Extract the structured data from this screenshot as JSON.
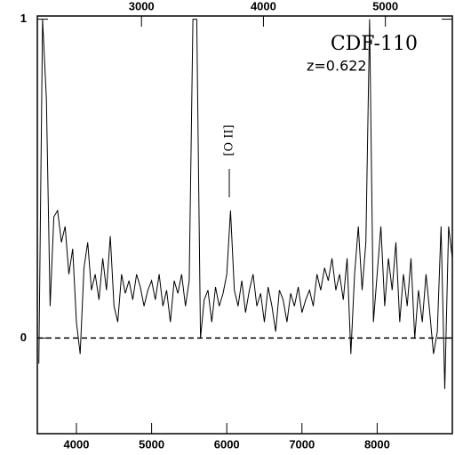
{
  "chart_data": {
    "type": "line",
    "annotations": [
      "CDF-110",
      "z=0.622",
      "[O II]"
    ],
    "color": "#000000",
    "x": [
      3500,
      3550,
      3600,
      3650,
      3700,
      3750,
      3800,
      3850,
      3900,
      3950,
      4000,
      4050,
      4100,
      4150,
      4200,
      4250,
      4300,
      4350,
      4400,
      4450,
      4500,
      4550,
      4600,
      4650,
      4700,
      4750,
      4800,
      4850,
      4900,
      4950,
      5000,
      5050,
      5100,
      5150,
      5200,
      5250,
      5300,
      5350,
      5400,
      5450,
      5500,
      5550,
      5600,
      5650,
      5700,
      5750,
      5800,
      5850,
      5900,
      5950,
      6000,
      6050,
      6100,
      6150,
      6200,
      6250,
      6300,
      6350,
      6400,
      6450,
      6500,
      6550,
      6600,
      6650,
      6700,
      6750,
      6800,
      6850,
      6900,
      6950,
      7000,
      7050,
      7100,
      7150,
      7200,
      7250,
      7300,
      7350,
      7400,
      7450,
      7500,
      7550,
      7600,
      7650,
      7700,
      7750,
      7800,
      7850,
      7900,
      7950,
      8000,
      8050,
      8100,
      8150,
      8200,
      8250,
      8300,
      8350,
      8400,
      8450,
      8500,
      8550,
      8600,
      8650,
      8700,
      8750,
      8800,
      8850,
      8900,
      8950,
      9000
    ],
    "values": [
      -0.08,
      1.0,
      0.75,
      0.1,
      0.38,
      0.4,
      0.3,
      0.35,
      0.2,
      0.28,
      0.05,
      -0.05,
      0.22,
      0.3,
      0.15,
      0.2,
      0.12,
      0.25,
      0.15,
      0.32,
      0.1,
      0.05,
      0.2,
      0.14,
      0.18,
      0.12,
      0.2,
      0.16,
      0.1,
      0.15,
      0.18,
      0.12,
      0.2,
      0.1,
      0.15,
      0.05,
      0.18,
      0.14,
      0.2,
      0.1,
      0.18,
      1.0,
      1.0,
      0.0,
      0.12,
      0.15,
      0.05,
      0.16,
      0.1,
      0.14,
      0.2,
      0.4,
      0.15,
      0.1,
      0.18,
      0.08,
      0.15,
      0.2,
      0.1,
      0.14,
      0.05,
      0.16,
      0.1,
      0.02,
      0.15,
      0.12,
      0.05,
      0.14,
      0.1,
      0.16,
      0.08,
      0.12,
      0.15,
      0.1,
      0.2,
      0.15,
      0.22,
      0.18,
      0.25,
      0.15,
      0.2,
      0.12,
      0.25,
      -0.05,
      0.2,
      0.35,
      0.15,
      0.3,
      1.0,
      0.05,
      0.2,
      0.35,
      0.1,
      0.25,
      0.15,
      0.3,
      0.05,
      0.2,
      0.1,
      0.25,
      0.0,
      0.15,
      0.05,
      0.2,
      0.08,
      -0.05,
      0.02,
      0.35,
      -0.16,
      0.35,
      0.25
    ],
    "xlim": [
      3480,
      9000
    ],
    "xticks": [
      4000,
      5000,
      6000,
      7000,
      8000
    ],
    "x2lim": [
      2146,
      5549
    ],
    "x2ticks": [
      3000,
      4000,
      5000
    ],
    "ylim": [
      -0.3,
      1.01
    ],
    "yticks": [
      0,
      1
    ],
    "reference_line": 0
  }
}
